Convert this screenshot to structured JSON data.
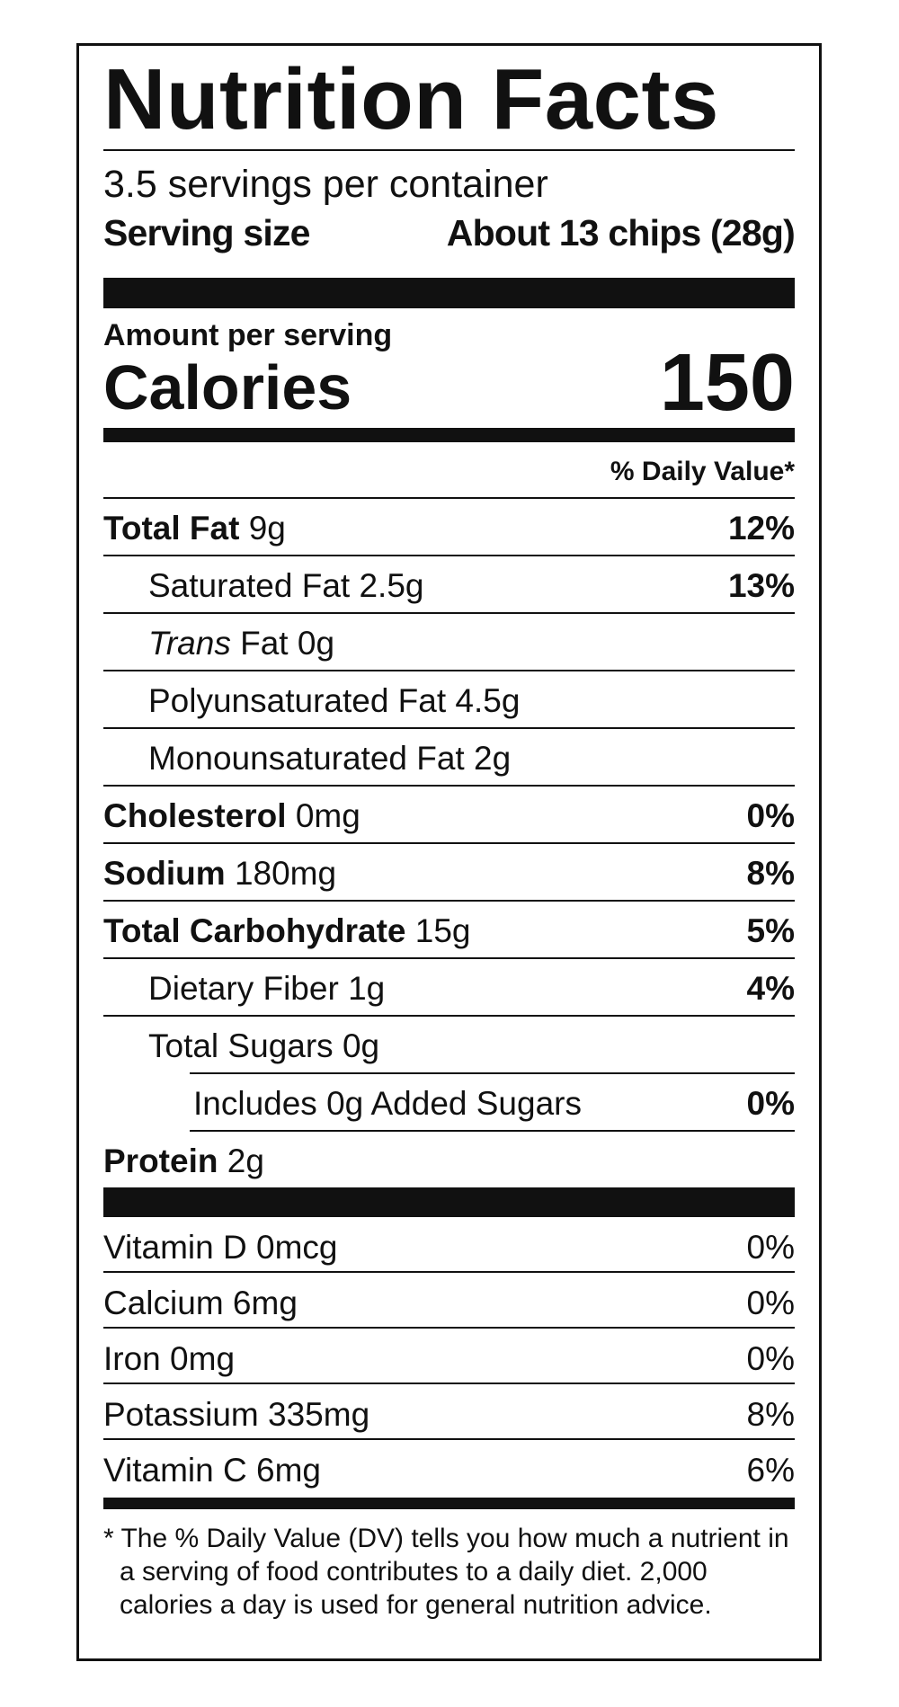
{
  "header": {
    "title": "Nutrition Facts",
    "servings_per_container": "3.5 servings per container",
    "serving_size_label": "Serving size",
    "serving_size_value": "About 13 chips (28g)"
  },
  "calories": {
    "amount_per_serving": "Amount per serving",
    "label": "Calories",
    "value": "150"
  },
  "daily_value_header": "% Daily Value*",
  "nutrients": [
    {
      "name": "Total Fat",
      "amount": "9g",
      "dv": "12%"
    },
    {
      "name": "Saturated Fat",
      "amount": "2.5g",
      "dv": "13%"
    },
    {
      "name_italic": "Trans",
      "name": "Fat",
      "amount": "0g"
    },
    {
      "name": "Polyunsaturated Fat",
      "amount": "4.5g"
    },
    {
      "name": "Monounsaturated Fat",
      "amount": "2g"
    },
    {
      "name": "Cholesterol",
      "amount": "0mg",
      "dv": "0%"
    },
    {
      "name": "Sodium",
      "amount": "180mg",
      "dv": "8%"
    },
    {
      "name": "Total Carbohydrate",
      "amount": "15g",
      "dv": "5%"
    },
    {
      "name": "Dietary Fiber",
      "amount": "1g",
      "dv": "4%"
    },
    {
      "name": "Total Sugars",
      "amount": "0g"
    },
    {
      "name": "Includes 0g Added Sugars",
      "dv": "0%"
    },
    {
      "name": "Protein",
      "amount": "2g"
    }
  ],
  "vitamins": [
    {
      "name": "Vitamin D",
      "amount": "0mcg",
      "dv": "0%"
    },
    {
      "name": "Calcium",
      "amount": "6mg",
      "dv": "0%"
    },
    {
      "name": "Iron",
      "amount": "0mg",
      "dv": "0%"
    },
    {
      "name": "Potassium",
      "amount": "335mg",
      "dv": "8%"
    },
    {
      "name": "Vitamin C",
      "amount": "6mg",
      "dv": "6%"
    }
  ],
  "footnote": "* The % Daily Value (DV) tells you how much a nutrient in a serving of food contributes to a daily diet. 2,000 calories a day is used for general nutrition advice."
}
